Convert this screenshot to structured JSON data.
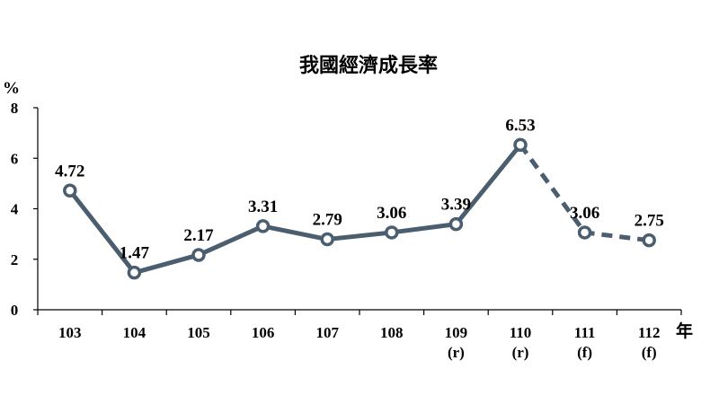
{
  "chart_data": {
    "type": "line",
    "title": "我國經濟成長率",
    "ylabel": "%",
    "xlabel": "年",
    "ylim": [
      0,
      8
    ],
    "yticks": [
      "0",
      "2",
      "4",
      "6",
      "8"
    ],
    "categories": [
      "103",
      "104",
      "105",
      "106",
      "107",
      "108",
      "109",
      "110",
      "111",
      "112"
    ],
    "category_notes": [
      "",
      "",
      "",
      "",
      "",
      "",
      "(r)",
      "(r)",
      "(f)",
      "(f)"
    ],
    "values": [
      4.72,
      1.47,
      2.17,
      3.31,
      2.79,
      3.06,
      3.39,
      6.53,
      3.06,
      2.75
    ],
    "value_labels": [
      "4.72",
      "1.47",
      "2.17",
      "3.31",
      "2.79",
      "3.06",
      "3.39",
      "6.53",
      "3.06",
      "2.75"
    ],
    "dashed_from_index": 7,
    "grid": false,
    "legend": "none",
    "line_color": "#4a5e70"
  }
}
